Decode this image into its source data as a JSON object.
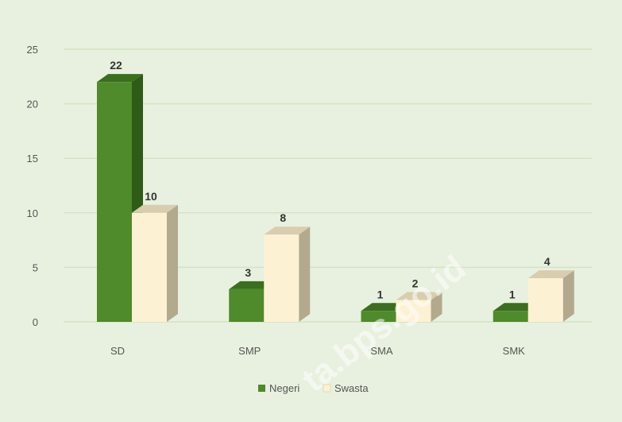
{
  "chart_data": {
    "type": "bar",
    "categories": [
      "SD",
      "SMP",
      "SMA",
      "SMK"
    ],
    "series": [
      {
        "name": "Negeri",
        "values": [
          22,
          3,
          1,
          1
        ],
        "color": "#4f8a2b",
        "side_color": "#2f5a17",
        "top_color": "#3b6e1f"
      },
      {
        "name": "Swasta",
        "values": [
          10,
          8,
          2,
          4
        ],
        "color": "#fdf1d3",
        "side_color": "#b3a98c",
        "top_color": "#d8cdaf"
      }
    ],
    "yticks": [
      0,
      5,
      10,
      15,
      20,
      25
    ],
    "ylim": [
      0,
      25
    ],
    "grid": true,
    "legend_position": "bottom",
    "data_labels": true,
    "watermark": "ta.bps.go.id"
  }
}
